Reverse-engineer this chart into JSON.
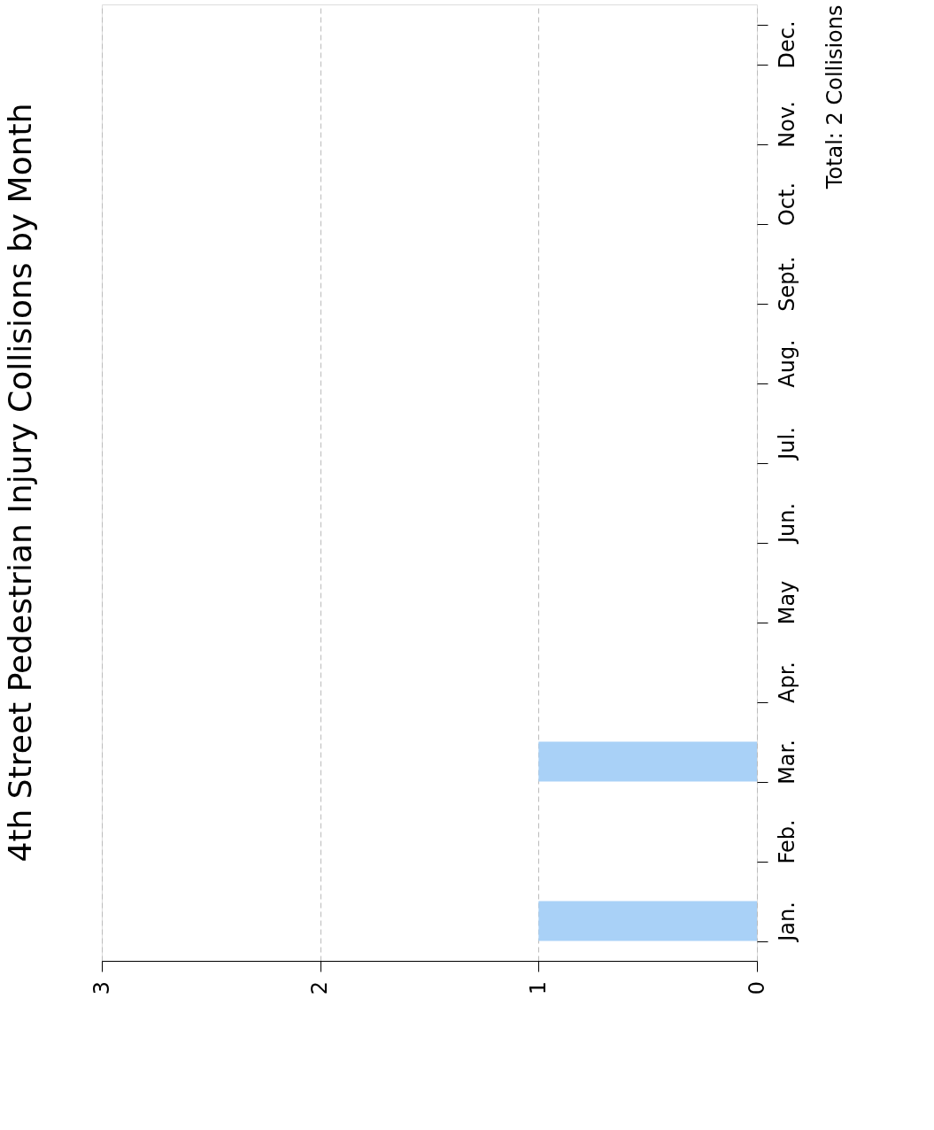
{
  "chart_data": {
    "type": "bar",
    "orientation": "horizontal",
    "title": "4th Street Pedestrian Injury Collisions by Month",
    "ylabel": "Total: 2 Collisions",
    "categories": [
      "Dec.",
      "Nov.",
      "Oct.",
      "Sept.",
      "Aug.",
      "Jul.",
      "Jun.",
      "May",
      "Apr.",
      "Mar.",
      "Feb.",
      "Jan."
    ],
    "values": [
      0,
      0,
      0,
      0,
      0,
      0,
      0,
      0,
      0,
      1,
      0,
      1
    ],
    "color": "#a9d1f7",
    "xlim": [
      3,
      0
    ],
    "xticks": [
      0,
      1,
      2,
      3
    ],
    "grid": "x"
  }
}
